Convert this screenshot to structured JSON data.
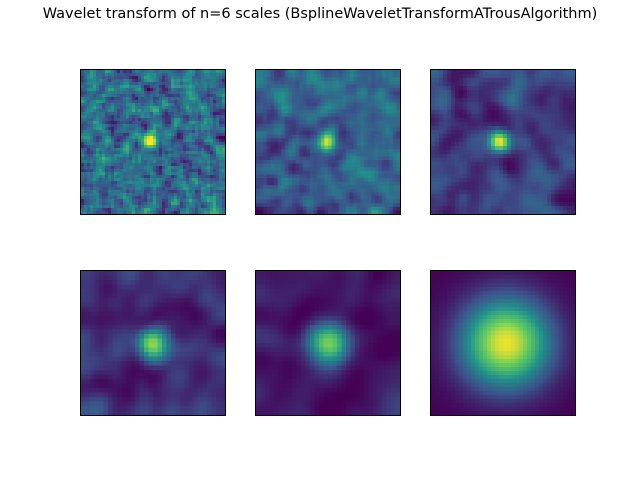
{
  "title": "Wavelet transform of n=6 scales (BsplineWaveletTransformATrousAlgorithm)",
  "colormap": {
    "name": "viridis",
    "stops": [
      "#440154",
      "#3b528b",
      "#21918c",
      "#5ec962",
      "#fde725"
    ]
  },
  "chart_data": [
    {
      "type": "heatmap",
      "title": "",
      "scale": 1,
      "texture": "fine noise",
      "background_level": 0.35,
      "peak": "small bright blob near center",
      "axes_ticks": "none"
    },
    {
      "type": "heatmap",
      "title": "",
      "scale": 2,
      "texture": "medium noise",
      "background_level": 0.3,
      "peak": "small bright blob near center",
      "axes_ticks": "none"
    },
    {
      "type": "heatmap",
      "title": "",
      "scale": 3,
      "texture": "coarse noise",
      "background_level": 0.2,
      "peak": "bright blob near center",
      "axes_ticks": "none"
    },
    {
      "type": "heatmap",
      "title": "",
      "scale": 4,
      "texture": "broad smooth structure",
      "background_level": 0.15,
      "peak": "bright blob near center",
      "axes_ticks": "none"
    },
    {
      "type": "heatmap",
      "title": "",
      "scale": 5,
      "texture": "very smooth",
      "background_level": 0.12,
      "peak": "round bright blob near center",
      "axes_ticks": "none"
    },
    {
      "type": "heatmap",
      "title": "",
      "scale": 6,
      "texture": "smooth residual",
      "background_level": 0.0,
      "peak": "large gaussian blob at center",
      "axes_ticks": "none"
    }
  ]
}
